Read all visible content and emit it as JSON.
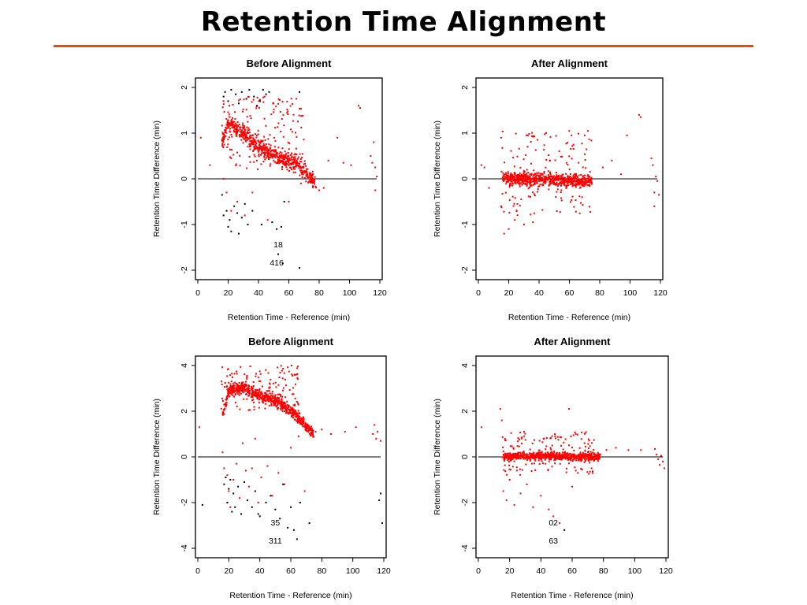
{
  "slide": {
    "title": "Retention Time Alignment"
  },
  "colors": {
    "rule": "#d4501e",
    "matched": "#ff0000",
    "outlier": "#000000",
    "line": "#000000"
  },
  "chart_data": [
    {
      "id": "p1",
      "type": "scatter",
      "title": "Before Alignment",
      "xlabel": "Retention Time - Reference (min)",
      "ylabel": "Retention Time Difference (min)",
      "xlim": [
        0,
        120
      ],
      "ylim": [
        -2,
        2
      ],
      "xticks": [
        0,
        20,
        40,
        60,
        80,
        100,
        120
      ],
      "yticks": [
        -2,
        -1,
        0,
        1,
        2
      ],
      "reference_line_y": 0,
      "annotations": [
        {
          "text": "18",
          "x": 53,
          "y": -1.5
        },
        {
          "text": "416",
          "x": 52,
          "y": -1.9
        }
      ],
      "trend": {
        "points": [
          [
            16,
            0.8
          ],
          [
            20,
            1.25
          ],
          [
            30,
            1.0
          ],
          [
            40,
            0.7
          ],
          [
            55,
            0.45
          ],
          [
            65,
            0.35
          ],
          [
            72,
            0.1
          ],
          [
            78,
            -0.1
          ]
        ],
        "spread": 0.2,
        "count": 620
      },
      "scatter": {
        "xrange": [
          16,
          70
        ],
        "yrange": [
          0.2,
          1.8
        ],
        "count": 170
      },
      "red_points": [
        [
          2,
          0.9
        ],
        [
          8,
          0.3
        ],
        [
          17,
          0.0
        ],
        [
          19,
          -0.3
        ],
        [
          22,
          -0.7
        ],
        [
          26,
          -0.5
        ],
        [
          31,
          -0.8
        ],
        [
          36,
          -0.3
        ],
        [
          46,
          -0.9
        ],
        [
          60,
          -0.5
        ],
        [
          68,
          -0.1
        ],
        [
          80,
          -0.25
        ],
        [
          83,
          -0.2
        ],
        [
          86,
          0.4
        ],
        [
          92,
          0.9
        ],
        [
          96,
          0.35
        ],
        [
          101,
          0.3
        ],
        [
          106,
          1.6
        ],
        [
          107,
          1.55
        ],
        [
          114,
          0.5
        ],
        [
          115,
          0.35
        ],
        [
          116,
          0.8
        ],
        [
          117,
          0.25
        ],
        [
          117,
          -0.25
        ],
        [
          118,
          0.05
        ]
      ],
      "black_points": [
        [
          17,
          1.8
        ],
        [
          18,
          1.9
        ],
        [
          20,
          1.7
        ],
        [
          22,
          1.95
        ],
        [
          25,
          1.85
        ],
        [
          27,
          1.65
        ],
        [
          29,
          1.9
        ],
        [
          32,
          1.75
        ],
        [
          34,
          1.95
        ],
        [
          37,
          1.8
        ],
        [
          39,
          1.6
        ],
        [
          41,
          1.7
        ],
        [
          43,
          1.95
        ],
        [
          45,
          1.85
        ],
        [
          47,
          1.9
        ],
        [
          67,
          1.9
        ],
        [
          16,
          -0.35
        ],
        [
          17,
          -0.8
        ],
        [
          19,
          -0.7
        ],
        [
          20,
          -1.05
        ],
        [
          21,
          -0.9
        ],
        [
          22,
          -1.15
        ],
        [
          24,
          -0.6
        ],
        [
          26,
          -0.75
        ],
        [
          27,
          -1.2
        ],
        [
          29,
          -0.85
        ],
        [
          31,
          -0.55
        ],
        [
          33,
          -1.0
        ],
        [
          36,
          -0.7
        ],
        [
          42,
          -1.0
        ],
        [
          49,
          -0.95
        ],
        [
          52,
          -1.1
        ],
        [
          55,
          -1.05
        ],
        [
          57,
          -0.5
        ],
        [
          53,
          -1.65
        ],
        [
          56,
          -1.85
        ],
        [
          67,
          -1.95
        ]
      ]
    },
    {
      "id": "p2",
      "type": "scatter",
      "title": "After Alignment",
      "xlabel": "Retention Time - Reference (min)",
      "ylabel": "Retention Time Difference (min)",
      "xlim": [
        0,
        120
      ],
      "ylim": [
        -2,
        2
      ],
      "xticks": [
        0,
        20,
        40,
        60,
        80,
        100,
        120
      ],
      "yticks": [
        -2,
        -1,
        0,
        1,
        2
      ],
      "reference_line_y": 0,
      "annotations": [],
      "trend": {
        "points": [
          [
            16,
            0.0
          ],
          [
            40,
            0.0
          ],
          [
            60,
            -0.05
          ],
          [
            75,
            -0.05
          ]
        ],
        "spread": 0.15,
        "count": 650
      },
      "scatter": {
        "xrange": [
          15,
          75
        ],
        "yrange": [
          -0.8,
          1.05
        ],
        "count": 150
      },
      "red_points": [
        [
          2,
          0.3
        ],
        [
          4,
          0.25
        ],
        [
          7,
          -0.2
        ],
        [
          15,
          0.9
        ],
        [
          15,
          -0.6
        ],
        [
          17,
          -1.2
        ],
        [
          20,
          -1.1
        ],
        [
          24,
          -0.9
        ],
        [
          30,
          -1.0
        ],
        [
          36,
          -0.95
        ],
        [
          82,
          0.25
        ],
        [
          88,
          0.4
        ],
        [
          94,
          0.1
        ],
        [
          98,
          0.95
        ],
        [
          106,
          1.4
        ],
        [
          107,
          1.35
        ],
        [
          114,
          0.45
        ],
        [
          115,
          0.3
        ],
        [
          116,
          -0.3
        ],
        [
          116,
          -0.6
        ],
        [
          117,
          0.05
        ],
        [
          118,
          -0.05
        ],
        [
          119,
          -0.35
        ]
      ],
      "black_points": []
    },
    {
      "id": "p3",
      "type": "scatter",
      "title": "Before Alignment",
      "xlabel": "Retention Time - Reference (min)",
      "ylabel": "Retention Time Difference (min)",
      "xlim": [
        0,
        120
      ],
      "ylim": [
        -4,
        4
      ],
      "xticks": [
        0,
        20,
        40,
        60,
        80,
        100,
        120
      ],
      "yticks": [
        -4,
        -2,
        0,
        2,
        4
      ],
      "reference_line_y": 0,
      "annotations": [
        {
          "text": "35",
          "x": 50,
          "y": -3.0
        },
        {
          "text": "311",
          "x": 50,
          "y": -3.8
        }
      ],
      "trend": {
        "points": [
          [
            16,
            1.8
          ],
          [
            20,
            2.9
          ],
          [
            30,
            3.0
          ],
          [
            40,
            2.7
          ],
          [
            52,
            2.4
          ],
          [
            60,
            2.0
          ],
          [
            68,
            1.5
          ],
          [
            75,
            1.0
          ]
        ],
        "spread": 0.25,
        "count": 700
      },
      "scatter": {
        "xrange": [
          15,
          65
        ],
        "yrange": [
          2.0,
          4.0
        ],
        "count": 160
      },
      "red_points": [
        [
          1,
          1.3
        ],
        [
          16,
          0.2
        ],
        [
          17,
          -0.5
        ],
        [
          19,
          -0.8
        ],
        [
          20,
          -1.5
        ],
        [
          21,
          -2.2
        ],
        [
          23,
          -1.0
        ],
        [
          25,
          -0.3
        ],
        [
          27,
          -1.8
        ],
        [
          29,
          0.6
        ],
        [
          31,
          -0.6
        ],
        [
          33,
          -1.3
        ],
        [
          35,
          -0.5
        ],
        [
          37,
          0.8
        ],
        [
          39,
          -2.0
        ],
        [
          41,
          -0.9
        ],
        [
          45,
          -0.4
        ],
        [
          48,
          -1.7
        ],
        [
          52,
          -0.7
        ],
        [
          56,
          -1.2
        ],
        [
          60,
          0.4
        ],
        [
          65,
          0.9
        ],
        [
          69,
          -1.5
        ],
        [
          76,
          1.1
        ],
        [
          80,
          1.2
        ],
        [
          86,
          1.0
        ],
        [
          95,
          1.1
        ],
        [
          102,
          1.3
        ],
        [
          113,
          1.0
        ],
        [
          114,
          1.4
        ],
        [
          115,
          0.8
        ],
        [
          116,
          1.1
        ],
        [
          118,
          0.7
        ]
      ],
      "black_points": [
        [
          3,
          -2.1
        ],
        [
          17,
          -1.2
        ],
        [
          18,
          -0.9
        ],
        [
          19,
          -2.0
        ],
        [
          20,
          -1.4
        ],
        [
          21,
          -1.0
        ],
        [
          22,
          -2.4
        ],
        [
          23,
          -1.6
        ],
        [
          24,
          -2.2
        ],
        [
          26,
          -1.3
        ],
        [
          28,
          -2.5
        ],
        [
          30,
          -1.1
        ],
        [
          32,
          -1.9
        ],
        [
          35,
          -2.2
        ],
        [
          37,
          -1.5
        ],
        [
          39,
          -2.5
        ],
        [
          40,
          -2.6
        ],
        [
          44,
          -2.0
        ],
        [
          47,
          -1.7
        ],
        [
          50,
          -2.3
        ],
        [
          53,
          -2.7
        ],
        [
          55,
          -1.2
        ],
        [
          58,
          -3.1
        ],
        [
          60,
          -2.2
        ],
        [
          62,
          -3.2
        ],
        [
          64,
          -3.6
        ],
        [
          66,
          -2.0
        ],
        [
          72,
          -2.9
        ],
        [
          117,
          -1.9
        ],
        [
          118,
          -1.6
        ],
        [
          119,
          -2.9
        ]
      ]
    },
    {
      "id": "p4",
      "type": "scatter",
      "title": "After Alignment",
      "xlabel": "Retention Time - Reference (min)",
      "ylabel": "Retention Time Difference (min)",
      "xlim": [
        0,
        120
      ],
      "ylim": [
        -4,
        4
      ],
      "xticks": [
        0,
        20,
        40,
        60,
        80,
        100,
        120
      ],
      "yticks": [
        -4,
        -2,
        0,
        2,
        4
      ],
      "reference_line_y": 0,
      "annotations": [
        {
          "text": "02",
          "x": 48,
          "y": -3.0
        },
        {
          "text": "63",
          "x": 48,
          "y": -3.8
        }
      ],
      "trend": {
        "points": [
          [
            16,
            0.0
          ],
          [
            40,
            0.05
          ],
          [
            60,
            0.0
          ],
          [
            78,
            0.0
          ]
        ],
        "spread": 0.18,
        "count": 650
      },
      "scatter": {
        "xrange": [
          15,
          75
        ],
        "yrange": [
          -0.8,
          1.1
        ],
        "count": 150
      },
      "red_points": [
        [
          2,
          1.3
        ],
        [
          14,
          2.1
        ],
        [
          15,
          1.6
        ],
        [
          16,
          -1.5
        ],
        [
          18,
          -1.9
        ],
        [
          20,
          -1.0
        ],
        [
          23,
          -2.1
        ],
        [
          27,
          -1.6
        ],
        [
          31,
          -1.2
        ],
        [
          35,
          -2.2
        ],
        [
          40,
          -1.7
        ],
        [
          45,
          -2.3
        ],
        [
          48,
          -2.6
        ],
        [
          52,
          -2.9
        ],
        [
          58,
          2.1
        ],
        [
          60,
          -1.3
        ],
        [
          82,
          0.3
        ],
        [
          88,
          0.4
        ],
        [
          96,
          0.3
        ],
        [
          104,
          0.3
        ],
        [
          113,
          0.35
        ],
        [
          114,
          0.1
        ],
        [
          115,
          -0.1
        ],
        [
          116,
          -0.35
        ],
        [
          117,
          0.05
        ],
        [
          118,
          -0.2
        ],
        [
          119,
          -0.5
        ]
      ],
      "black_points": [
        [
          55,
          -3.2
        ]
      ]
    }
  ]
}
